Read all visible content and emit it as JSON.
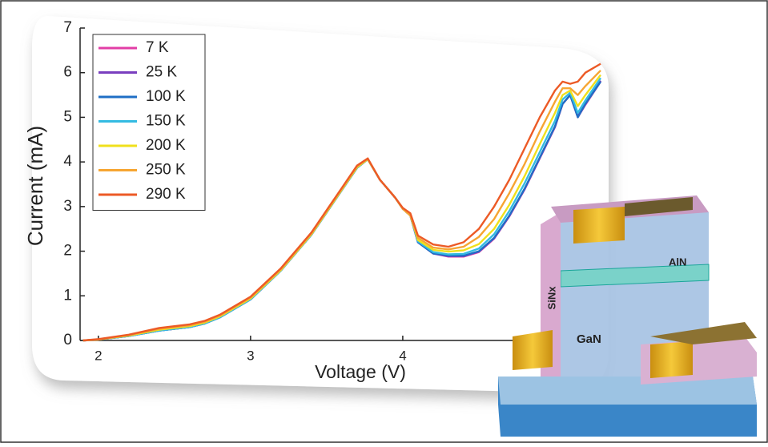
{
  "chart_data": {
    "type": "line",
    "x_label": "Voltage (V)",
    "y_label": "Current (mA)",
    "x": [
      1.9,
      2.0,
      2.2,
      2.4,
      2.6,
      2.7,
      2.8,
      3.0,
      3.2,
      3.4,
      3.6,
      3.7,
      3.77,
      3.85,
      3.95,
      4.0,
      4.05,
      4.1,
      4.2,
      4.3,
      4.4,
      4.5,
      4.6,
      4.7,
      4.8,
      4.9,
      5.0,
      5.05,
      5.1,
      5.15,
      5.2,
      5.3
    ],
    "series": [
      {
        "name": "7 K",
        "color": "#e23ea6",
        "values": [
          0,
          0.02,
          0.1,
          0.22,
          0.3,
          0.38,
          0.52,
          0.92,
          1.57,
          2.37,
          3.37,
          3.87,
          4.06,
          3.6,
          3.2,
          2.95,
          2.8,
          2.2,
          1.95,
          1.88,
          1.88,
          1.98,
          2.28,
          2.78,
          3.38,
          4.08,
          4.78,
          5.3,
          5.5,
          5.0,
          5.28,
          5.8
        ]
      },
      {
        "name": "25 K",
        "color": "#7a3fbf",
        "values": [
          0,
          0.02,
          0.1,
          0.22,
          0.3,
          0.38,
          0.52,
          0.92,
          1.57,
          2.37,
          3.37,
          3.87,
          4.06,
          3.6,
          3.2,
          2.95,
          2.8,
          2.2,
          1.95,
          1.89,
          1.89,
          1.99,
          2.29,
          2.79,
          3.39,
          4.09,
          4.79,
          5.3,
          5.5,
          5.02,
          5.3,
          5.82
        ]
      },
      {
        "name": "100 K",
        "color": "#1f6fc5",
        "values": [
          0,
          0.02,
          0.1,
          0.22,
          0.3,
          0.38,
          0.52,
          0.92,
          1.57,
          2.37,
          3.37,
          3.87,
          4.06,
          3.6,
          3.2,
          2.95,
          2.8,
          2.2,
          1.95,
          1.9,
          1.9,
          2.0,
          2.3,
          2.8,
          3.4,
          4.1,
          4.8,
          5.3,
          5.5,
          5.0,
          5.3,
          5.8
        ]
      },
      {
        "name": "150 K",
        "color": "#33bbe2",
        "values": [
          0,
          0.02,
          0.1,
          0.22,
          0.3,
          0.38,
          0.52,
          0.92,
          1.57,
          2.37,
          3.37,
          3.87,
          4.06,
          3.6,
          3.2,
          2.95,
          2.8,
          2.22,
          1.98,
          1.93,
          1.94,
          2.06,
          2.38,
          2.9,
          3.52,
          4.22,
          4.92,
          5.4,
          5.55,
          5.1,
          5.38,
          5.88
        ]
      },
      {
        "name": "200 K",
        "color": "#f0e01c",
        "values": [
          0,
          0.02,
          0.11,
          0.24,
          0.32,
          0.4,
          0.54,
          0.94,
          1.58,
          2.38,
          3.38,
          3.88,
          4.06,
          3.6,
          3.2,
          2.95,
          2.8,
          2.25,
          2.03,
          1.99,
          2.02,
          2.16,
          2.5,
          3.04,
          3.68,
          4.4,
          5.1,
          5.5,
          5.6,
          5.25,
          5.5,
          5.95
        ]
      },
      {
        "name": "250 K",
        "color": "#f6a532",
        "values": [
          0,
          0.02,
          0.12,
          0.26,
          0.34,
          0.42,
          0.56,
          0.96,
          1.6,
          2.4,
          3.4,
          3.9,
          4.07,
          3.6,
          3.2,
          2.95,
          2.8,
          2.3,
          2.08,
          2.04,
          2.1,
          2.32,
          2.72,
          3.3,
          3.95,
          4.68,
          5.35,
          5.65,
          5.65,
          5.5,
          5.7,
          6.05
        ]
      },
      {
        "name": "290 K",
        "color": "#ec5a26",
        "values": [
          0,
          0.03,
          0.13,
          0.28,
          0.36,
          0.44,
          0.58,
          0.98,
          1.62,
          2.42,
          3.42,
          3.92,
          4.08,
          3.6,
          3.2,
          2.97,
          2.85,
          2.35,
          2.15,
          2.1,
          2.2,
          2.5,
          3.0,
          3.6,
          4.3,
          5.0,
          5.6,
          5.8,
          5.75,
          5.8,
          6.0,
          6.2
        ]
      }
    ],
    "xlim": [
      1.88,
      5.3
    ],
    "ylim": [
      0,
      7
    ],
    "xticks": [
      2,
      3,
      4
    ],
    "yticks": [
      0,
      1,
      2,
      3,
      4,
      5,
      6,
      7
    ],
    "legend": "upper left"
  },
  "illustration": {
    "labels": [
      "SiNx",
      "AlN",
      "GaN"
    ]
  }
}
